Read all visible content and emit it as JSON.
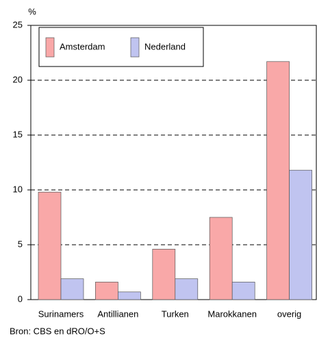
{
  "chart_data": {
    "type": "bar",
    "y_label": "%",
    "source": "Bron: CBS en dRO/O+S",
    "categories": [
      "Surinamers",
      "Antillianen",
      "Turken",
      "Marokkanen",
      "overig"
    ],
    "series": [
      {
        "name": "Amsterdam",
        "color": "#f9a8a8",
        "values": [
          9.8,
          1.6,
          4.6,
          7.5,
          21.7
        ]
      },
      {
        "name": "Nederland",
        "color": "#c0c4f0",
        "values": [
          1.9,
          0.7,
          1.9,
          1.6,
          11.8
        ]
      }
    ],
    "ylim": [
      0,
      25
    ],
    "yticks": [
      0,
      5,
      10,
      15,
      20,
      25
    ],
    "grid": true,
    "legend": "upper left"
  }
}
